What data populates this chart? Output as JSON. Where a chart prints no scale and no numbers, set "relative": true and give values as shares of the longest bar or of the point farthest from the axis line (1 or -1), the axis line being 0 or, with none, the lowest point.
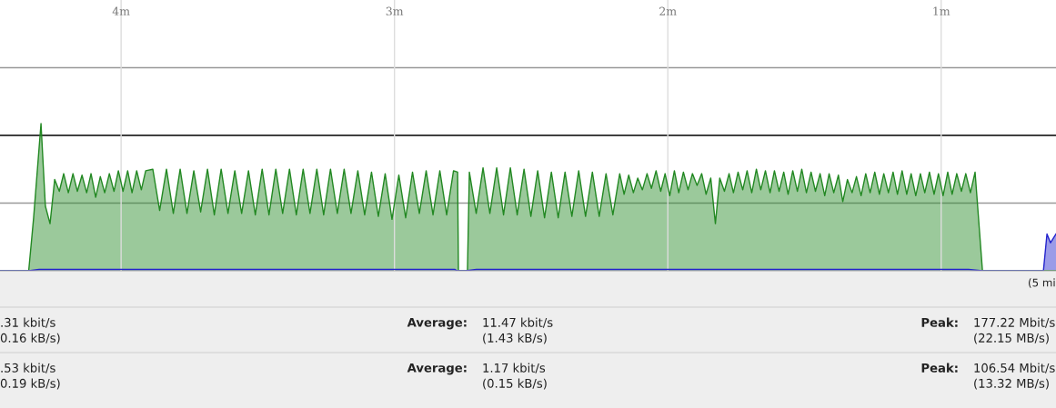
{
  "chart_data": {
    "type": "area",
    "relative": true,
    "grid": true,
    "legend": false,
    "tick_labels": "x",
    "xlim": [
      4.443,
      0.58
    ],
    "ref_lines": [
      {
        "axis": "y",
        "value": 0.46,
        "color": "#999999"
      },
      {
        "axis": "y",
        "value": 0.92,
        "color": "#000000"
      },
      {
        "axis": "y",
        "value": 1.38,
        "color": "#999999"
      }
    ],
    "xticks": [
      {
        "value": 4,
        "label": "4m"
      },
      {
        "value": 3,
        "label": "3m"
      },
      {
        "value": 2,
        "label": "2m"
      },
      {
        "value": 1,
        "label": "1m"
      }
    ],
    "annotations": [
      "(5 mi",
      ".31 kbit/s",
      "0.16 kB/s)",
      "Average:",
      "11.47 kbit/s",
      "(1.43 kB/s)",
      "Peak:",
      "177.22 Mbit/s",
      "(22.15 MB/s)",
      ".53 kbit/s",
      "0.19 kB/s)",
      "Average:",
      "1.17 kbit/s",
      "(0.15 kB/s)",
      "Peak:",
      "106.54 Mbit/s",
      "(13.32 MB/s)"
    ],
    "series": [
      {
        "color": "#228822",
        "x": [
          4.443,
          4.338,
          4.32,
          4.293,
          4.277,
          4.26,
          4.243,
          4.226,
          4.21,
          4.193,
          4.176,
          4.16,
          4.143,
          4.126,
          4.11,
          4.093,
          4.076,
          4.06,
          4.043,
          4.026,
          4.01,
          3.993,
          3.976,
          3.96,
          3.943,
          3.926,
          3.91,
          3.884,
          3.859,
          3.834,
          3.809,
          3.784,
          3.759,
          3.734,
          3.709,
          3.684,
          3.659,
          3.634,
          3.609,
          3.584,
          3.559,
          3.534,
          3.509,
          3.484,
          3.459,
          3.434,
          3.409,
          3.384,
          3.359,
          3.334,
          3.309,
          3.284,
          3.259,
          3.234,
          3.209,
          3.184,
          3.159,
          3.134,
          3.109,
          3.084,
          3.059,
          3.034,
          3.009,
          2.984,
          2.959,
          2.934,
          2.909,
          2.884,
          2.859,
          2.834,
          2.809,
          2.784,
          2.769,
          2.766,
          2.733,
          2.726,
          2.701,
          2.676,
          2.651,
          2.626,
          2.601,
          2.576,
          2.551,
          2.526,
          2.501,
          2.476,
          2.451,
          2.426,
          2.401,
          2.376,
          2.351,
          2.326,
          2.301,
          2.276,
          2.251,
          2.226,
          2.201,
          2.176,
          2.16,
          2.143,
          2.126,
          2.11,
          2.093,
          2.076,
          2.06,
          2.043,
          2.026,
          2.01,
          1.993,
          1.976,
          1.96,
          1.943,
          1.926,
          1.91,
          1.893,
          1.876,
          1.86,
          1.843,
          1.826,
          1.81,
          1.793,
          1.776,
          1.76,
          1.743,
          1.726,
          1.71,
          1.693,
          1.676,
          1.66,
          1.643,
          1.626,
          1.61,
          1.593,
          1.576,
          1.56,
          1.543,
          1.526,
          1.51,
          1.493,
          1.476,
          1.46,
          1.443,
          1.426,
          1.41,
          1.393,
          1.376,
          1.36,
          1.343,
          1.326,
          1.31,
          1.293,
          1.276,
          1.26,
          1.243,
          1.226,
          1.21,
          1.193,
          1.176,
          1.16,
          1.143,
          1.126,
          1.11,
          1.093,
          1.076,
          1.06,
          1.043,
          1.026,
          1.01,
          0.993,
          0.976,
          0.96,
          0.943,
          0.926,
          0.91,
          0.893,
          0.876,
          0.849,
          0.58
        ],
        "values": [
          0,
          0,
          0.36,
          1.0,
          0.44,
          0.32,
          0.62,
          0.54,
          0.66,
          0.53,
          0.66,
          0.54,
          0.65,
          0.53,
          0.66,
          0.5,
          0.64,
          0.53,
          0.66,
          0.54,
          0.68,
          0.54,
          0.68,
          0.53,
          0.68,
          0.55,
          0.68,
          0.69,
          0.41,
          0.69,
          0.39,
          0.69,
          0.39,
          0.68,
          0.4,
          0.69,
          0.38,
          0.69,
          0.39,
          0.68,
          0.39,
          0.68,
          0.38,
          0.69,
          0.38,
          0.69,
          0.39,
          0.69,
          0.38,
          0.69,
          0.39,
          0.69,
          0.38,
          0.69,
          0.39,
          0.69,
          0.39,
          0.68,
          0.38,
          0.67,
          0.37,
          0.66,
          0.35,
          0.65,
          0.36,
          0.67,
          0.39,
          0.68,
          0.38,
          0.68,
          0.38,
          0.68,
          0.67,
          0,
          0,
          0.67,
          0.39,
          0.7,
          0.39,
          0.7,
          0.38,
          0.7,
          0.38,
          0.69,
          0.37,
          0.68,
          0.36,
          0.67,
          0.36,
          0.67,
          0.37,
          0.68,
          0.37,
          0.67,
          0.37,
          0.66,
          0.38,
          0.66,
          0.52,
          0.65,
          0.53,
          0.63,
          0.55,
          0.66,
          0.56,
          0.68,
          0.54,
          0.66,
          0.51,
          0.68,
          0.53,
          0.67,
          0.55,
          0.66,
          0.58,
          0.66,
          0.52,
          0.63,
          0.32,
          0.63,
          0.54,
          0.66,
          0.53,
          0.67,
          0.55,
          0.68,
          0.53,
          0.69,
          0.55,
          0.68,
          0.53,
          0.68,
          0.54,
          0.67,
          0.52,
          0.68,
          0.54,
          0.69,
          0.53,
          0.67,
          0.54,
          0.66,
          0.51,
          0.66,
          0.53,
          0.65,
          0.47,
          0.62,
          0.53,
          0.64,
          0.51,
          0.66,
          0.53,
          0.67,
          0.52,
          0.66,
          0.53,
          0.67,
          0.52,
          0.68,
          0.52,
          0.66,
          0.51,
          0.66,
          0.53,
          0.67,
          0.52,
          0.66,
          0.51,
          0.67,
          0.52,
          0.66,
          0.54,
          0.66,
          0.53,
          0.67,
          0,
          0
        ]
      },
      {
        "color": "#2222cc",
        "x": [
          4.443,
          4.338,
          4.3,
          4.2,
          4.1,
          3.9,
          3.6,
          3.3,
          3.0,
          2.78,
          2.77,
          2.74,
          2.7,
          2.5,
          2.2,
          1.9,
          1.5,
          1.2,
          0.9,
          0.849,
          0.64,
          0.626,
          0.613,
          0.6,
          0.58
        ],
        "values": [
          0,
          0,
          0.01,
          0.01,
          0.01,
          0.01,
          0.01,
          0.01,
          0.01,
          0.01,
          0,
          0,
          0.01,
          0.01,
          0.01,
          0.01,
          0.01,
          0.01,
          0.01,
          0,
          0,
          0,
          0.25,
          0.19,
          0.25
        ]
      }
    ]
  }
}
